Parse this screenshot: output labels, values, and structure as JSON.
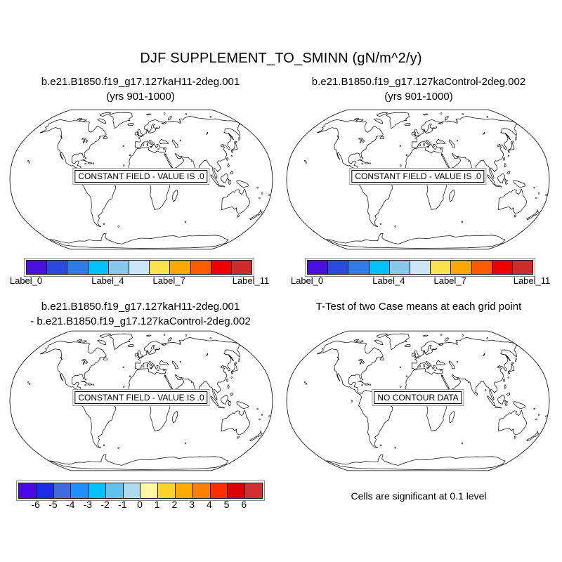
{
  "main_title": "DJF SUPPLEMENT_TO_SMINN (gN/m^2/y)",
  "panels": [
    {
      "title_lines": [
        "b.e21.B1850.f19_g17.127kaH11-2deg.001",
        "(yrs 901-1000)"
      ],
      "overlay_text": "CONSTANT FIELD - VALUE IS .0"
    },
    {
      "title_lines": [
        "b.e21.B1850.f19_g17.127kaControl-2deg.002",
        "(yrs 901-1000)"
      ],
      "overlay_text": "CONSTANT FIELD - VALUE IS .0"
    },
    {
      "title_lines": [
        "b.e21.B1850.f19_g17.127kaH11-2deg.001",
        "- b.e21.B1850.f19_g17.127kaControl-2deg.002"
      ],
      "overlay_text": "CONSTANT FIELD - VALUE IS .0"
    },
    {
      "title_lines": [
        "T-Test of two Case means at each grid point",
        ""
      ],
      "overlay_text": "NO CONTOUR DATA"
    }
  ],
  "footnote": "Cells are significant at 0.1 level",
  "chart_data": [
    {
      "type": "map",
      "projection": "robinson",
      "panel": "top_left",
      "title": "b.e21.B1850.f19_g17.127kaH11-2deg.001",
      "subtitle": "(yrs 901-1000)",
      "field_status": "CONSTANT FIELD - VALUE IS .0",
      "labelbar": {
        "colors": [
          "#4a10dd",
          "#2a49df",
          "#2f7ce8",
          "#00bfff",
          "#86c8ea",
          "#cce6f7",
          "#ffe34d",
          "#ffa500",
          "#ff5c00",
          "#ee0000",
          "#cd2c2c"
        ],
        "tick_labels": [
          "Label_0",
          "Label_4",
          "Label_7",
          "Label_11"
        ],
        "tick_box_indices": [
          0,
          4,
          7,
          11
        ]
      }
    },
    {
      "type": "map",
      "projection": "robinson",
      "panel": "top_right",
      "title": "b.e21.B1850.f19_g17.127kaControl-2deg.002",
      "subtitle": "(yrs 901-1000)",
      "field_status": "CONSTANT FIELD - VALUE IS .0",
      "labelbar": {
        "colors": [
          "#4a10dd",
          "#2a49df",
          "#2f7ce8",
          "#00bfff",
          "#86c8ea",
          "#cce6f7",
          "#ffe34d",
          "#ffa500",
          "#ff5c00",
          "#ee0000",
          "#cd2c2c"
        ],
        "tick_labels": [
          "Label_0",
          "Label_4",
          "Label_7",
          "Label_11"
        ],
        "tick_box_indices": [
          0,
          4,
          7,
          11
        ]
      }
    },
    {
      "type": "map",
      "projection": "robinson",
      "panel": "bottom_left",
      "title": "b.e21.B1850.f19_g17.127kaH11-2deg.001 - b.e21.B1850.f19_g17.127kaControl-2deg.002",
      "field_status": "CONSTANT FIELD - VALUE IS .0",
      "labelbar": {
        "colors": [
          "#4a0ae8",
          "#1c2be8",
          "#3e6bde",
          "#1e90ff",
          "#00bfff",
          "#5fc3ee",
          "#aedaf0",
          "#fff7a6",
          "#ffd42a",
          "#ffaa00",
          "#ff8000",
          "#ff3000",
          "#dd0000",
          "#cf2f2f"
        ],
        "tick_labels": [
          "-6",
          "-5",
          "-4",
          "-3",
          "-2",
          "-1",
          "0",
          "1",
          "2",
          "3",
          "4",
          "5",
          "6"
        ],
        "tick_box_indices": [
          1,
          2,
          3,
          4,
          5,
          6,
          7,
          8,
          9,
          10,
          11,
          12,
          13
        ]
      }
    },
    {
      "type": "map",
      "projection": "robinson",
      "panel": "bottom_right",
      "title": "T-Test of two Case means at each grid point",
      "field_status": "NO CONTOUR DATA",
      "note": "Cells are significant at 0.1 level"
    }
  ]
}
